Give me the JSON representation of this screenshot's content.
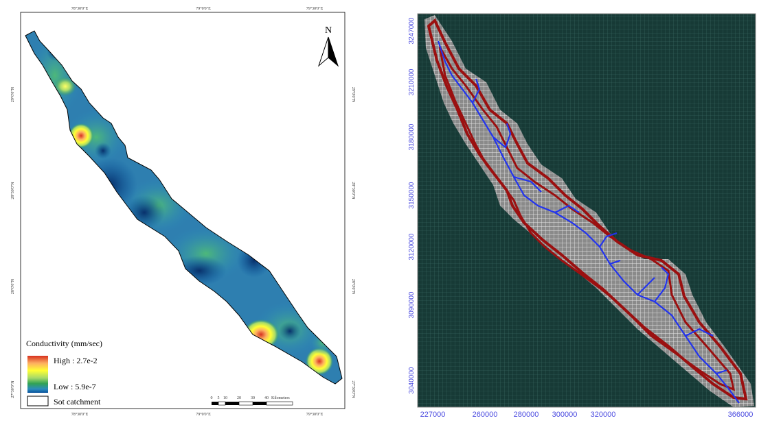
{
  "left_map": {
    "top_ticks": [
      "78°30'0\"E",
      "79°0'0\"E",
      "79°30'0\"E"
    ],
    "bottom_ticks": [
      "78°30'0\"E",
      "79°0'0\"E",
      "79°30'0\"E"
    ],
    "left_ticks": [
      "29°0'0\"N",
      "28°30'0\"N",
      "28°0'0\"N",
      "27°30'0\"N"
    ],
    "right_ticks": [
      "29°0'0\"N",
      "28°30'0\"N",
      "28°0'0\"N",
      "27°30'0\"N"
    ],
    "north_label": "N",
    "legend": {
      "title": "Conductivity (mm/sec)",
      "high": "High : 2.7e-2",
      "low": "Low : 5.9e-7",
      "catchment": "Sot catchment",
      "colors": [
        "#d7301f",
        "#fdae61",
        "#ffff33",
        "#a6d96a",
        "#31a354",
        "#2b8cbe",
        "#08519c"
      ]
    },
    "scale": {
      "ticks": [
        "0",
        "5",
        "10",
        "20",
        "30",
        "40"
      ],
      "unit": "Kilometers"
    }
  },
  "right_map": {
    "y_labels": [
      "3247000",
      "3210000",
      "3180000",
      "3150000",
      "3120000",
      "3090000",
      "3040000"
    ],
    "x_labels": [
      "227000",
      "260000",
      "280000",
      "300000",
      "320000",
      "366000"
    ],
    "colors": {
      "background": "#173a36",
      "grid": "#c9c9c9",
      "boundary": "#9b1010",
      "stream": "#2233ee"
    }
  }
}
